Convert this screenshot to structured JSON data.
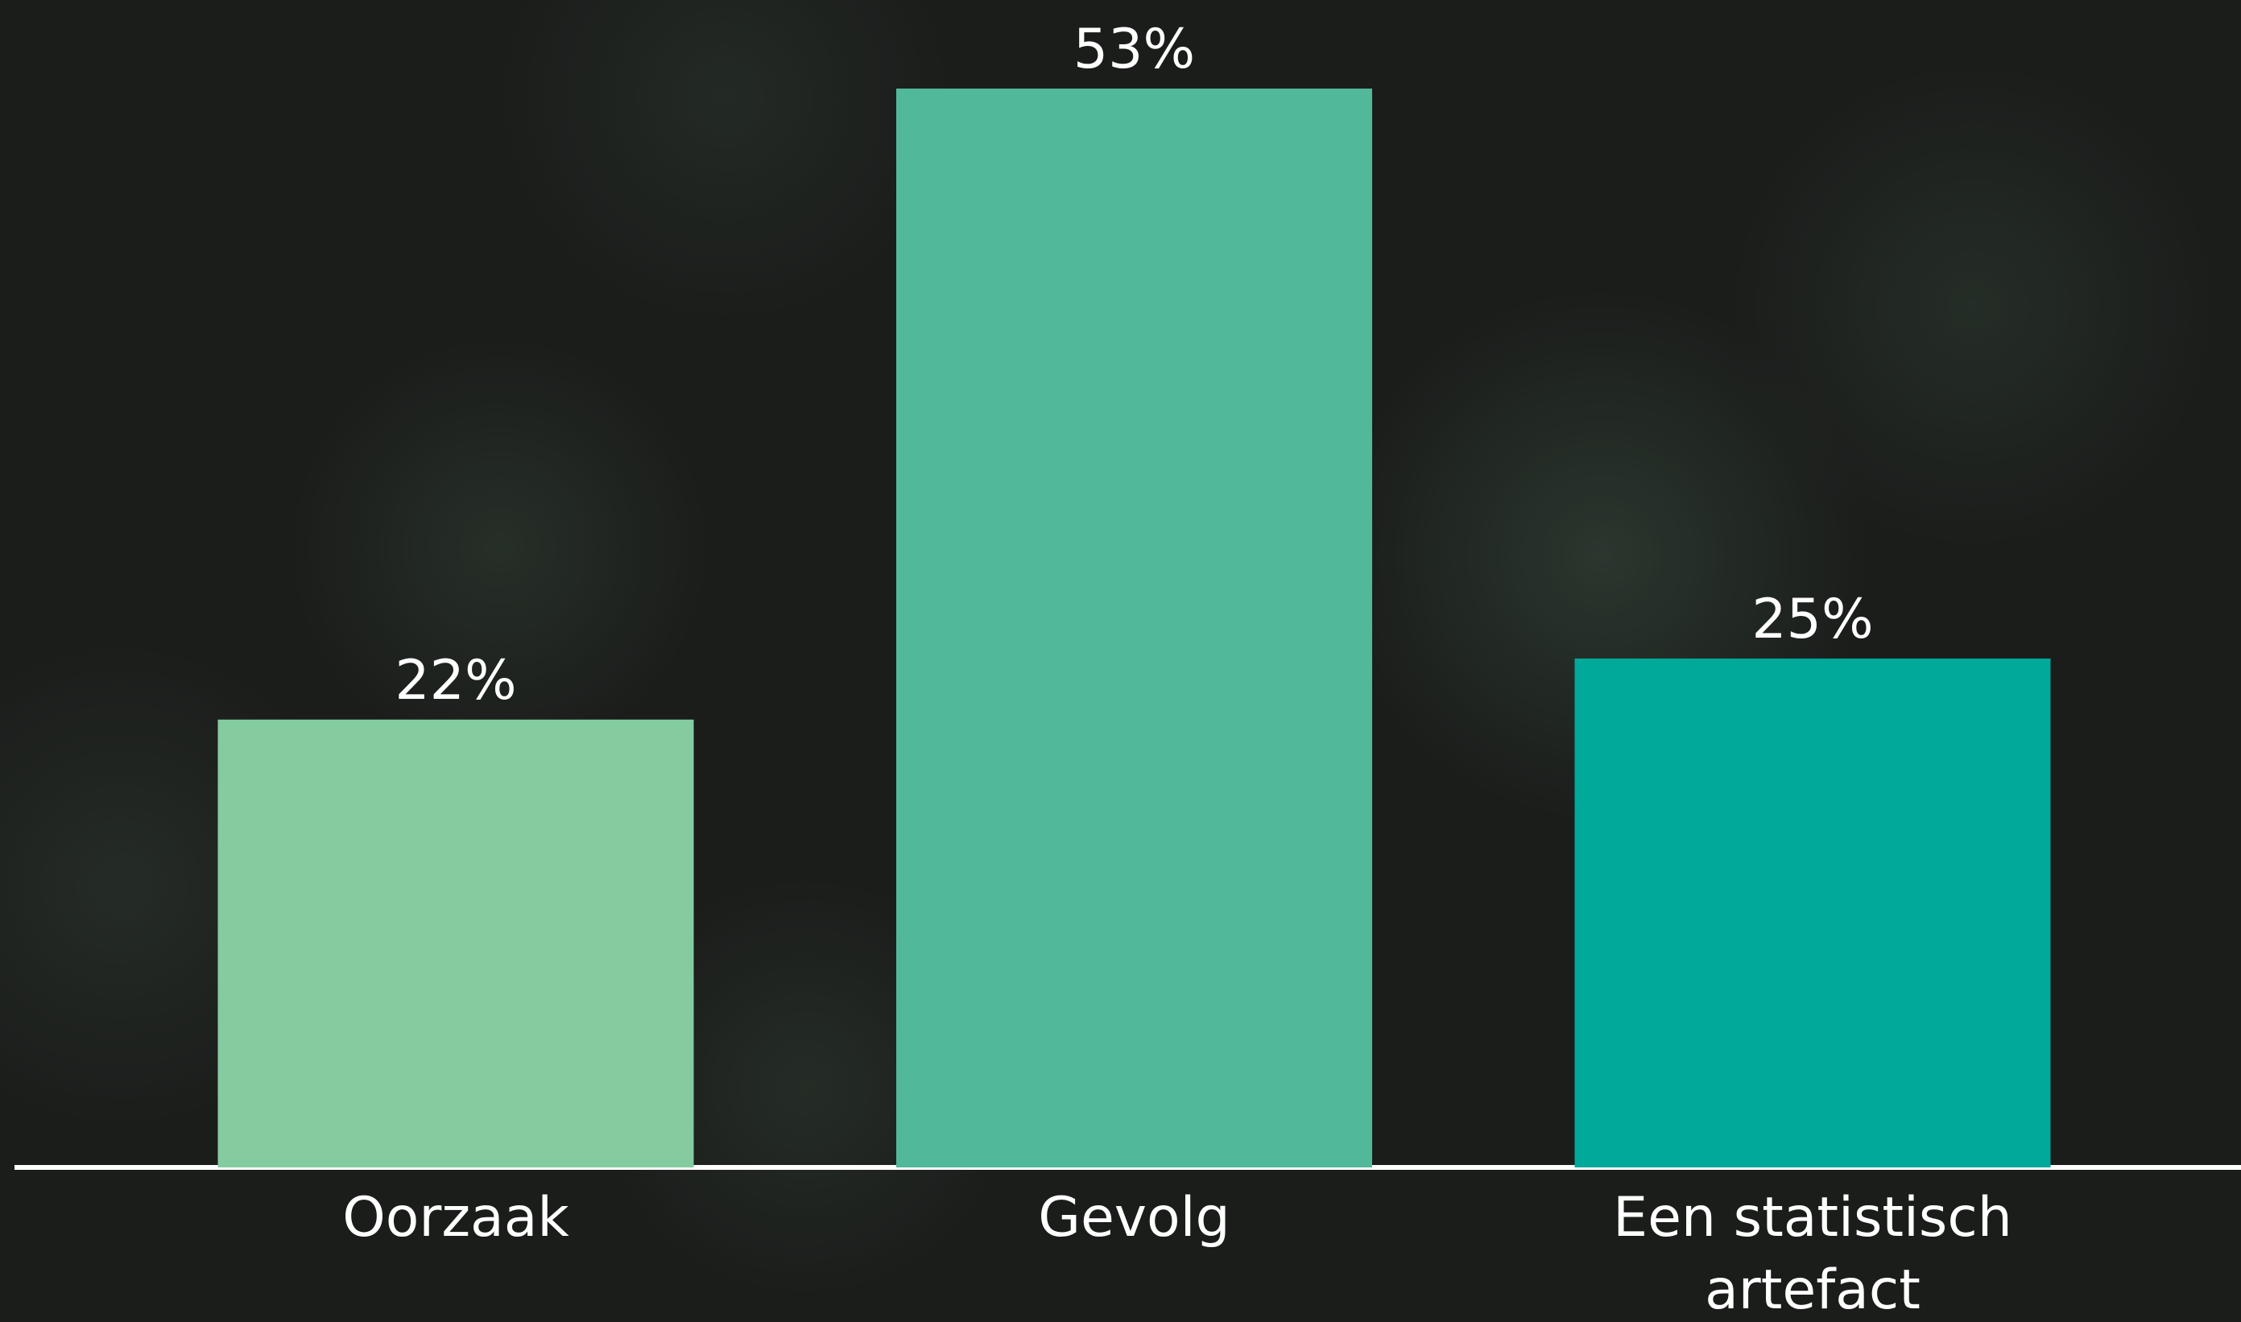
{
  "chart_data": {
    "type": "bar",
    "categories": [
      "Oorzaak",
      "Gevolg",
      "Een statistisch artefact"
    ],
    "values": [
      22,
      53,
      25
    ],
    "value_labels": [
      "22%",
      "53%",
      "25%"
    ],
    "colors": [
      "#84cca0",
      "#52b89a",
      "#00a99a"
    ]
  }
}
